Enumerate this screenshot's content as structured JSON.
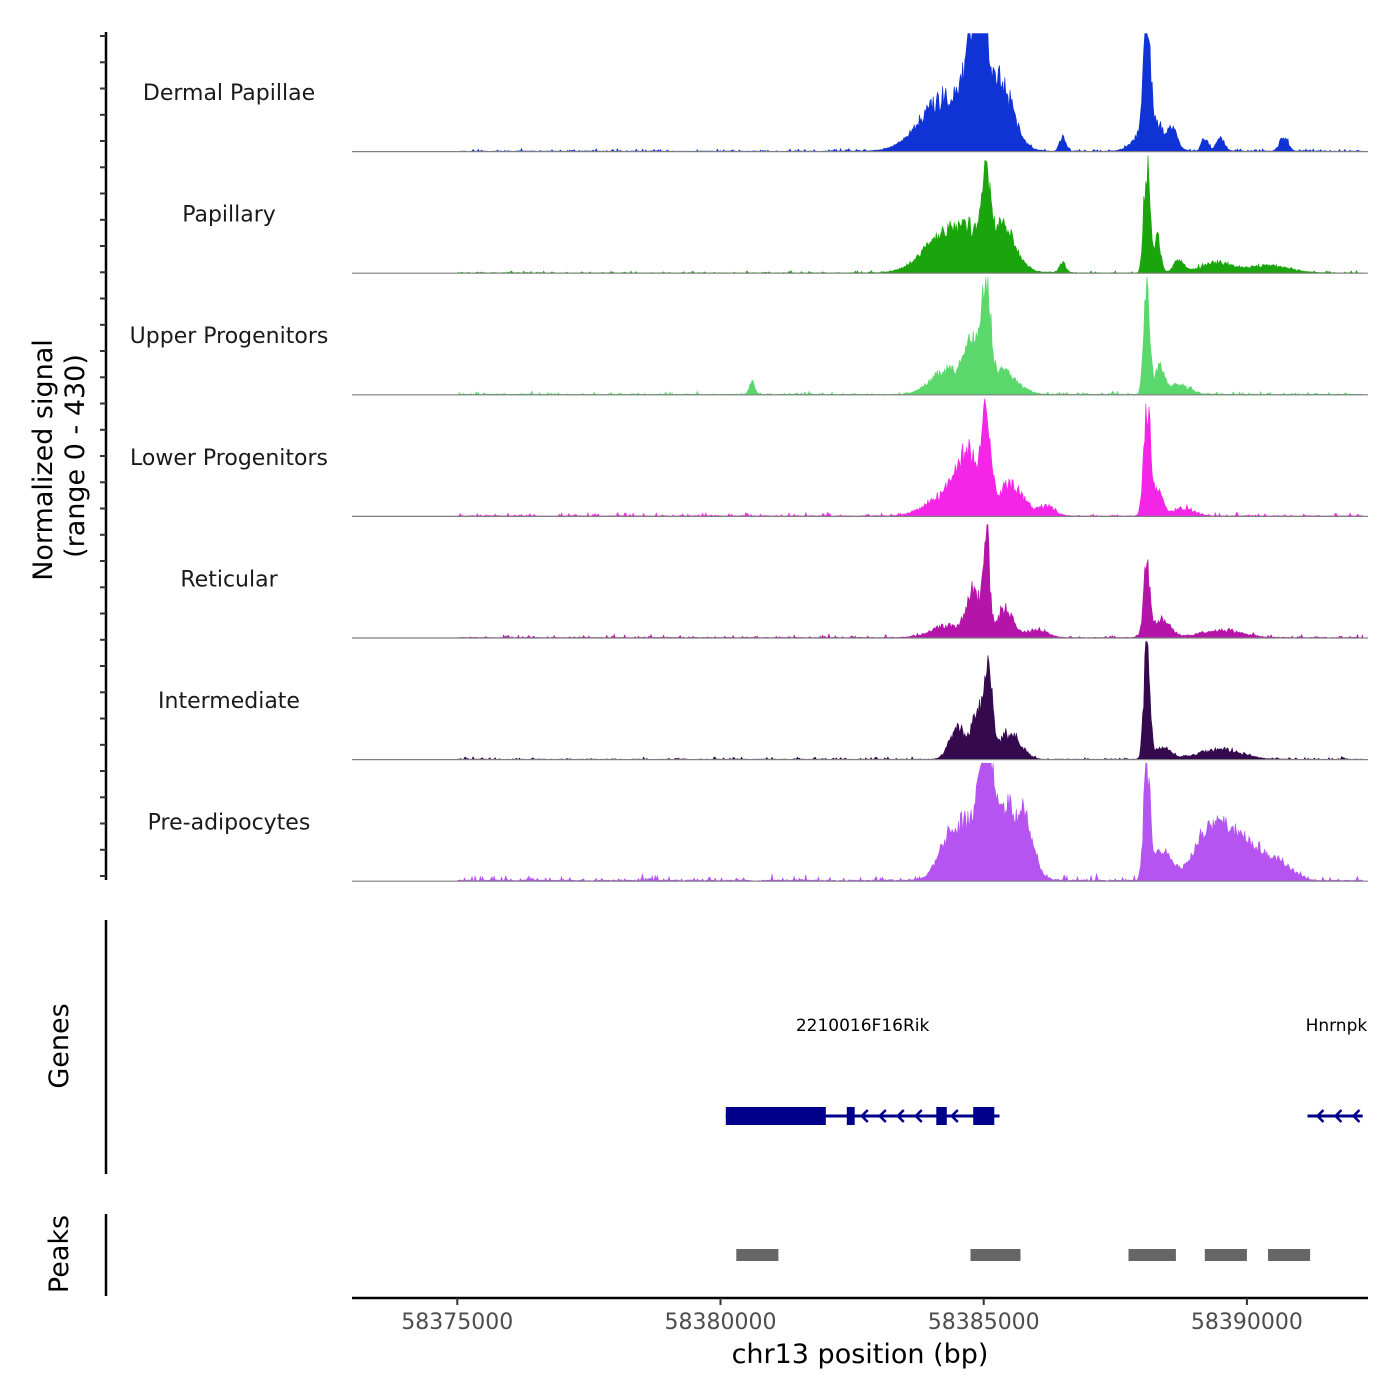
{
  "chart_data": {
    "type": "area",
    "title": "",
    "ylabel_line1": "Normalized signal",
    "ylabel_line2": "(range 0 - 430)",
    "signal_range": [
      0,
      430
    ],
    "xlabel": "chr13 position (bp)",
    "xlim": [
      58373000,
      58392300
    ],
    "x_ticks": [
      58375000,
      58380000,
      58385000,
      58390000
    ],
    "x_tick_labels": [
      "58375000",
      "58380000",
      "58385000",
      "58390000"
    ],
    "region_start": 58375000,
    "region_end": 58392200,
    "tracks": [
      {
        "name": "Dermal Papillae",
        "color": "#1033d6",
        "noise": 0.03,
        "peaks": [
          [
            58384000,
            12,
            400
          ],
          [
            58384500,
            40,
            500
          ],
          [
            58385000,
            120,
            60
          ],
          [
            58384800,
            70,
            120
          ],
          [
            58385300,
            50,
            250
          ],
          [
            58386500,
            12,
            60
          ],
          [
            58388100,
            95,
            60
          ],
          [
            58388200,
            25,
            250
          ],
          [
            58388600,
            12,
            80
          ],
          [
            58389200,
            12,
            60
          ],
          [
            58389500,
            10,
            80
          ],
          [
            58390700,
            12,
            80
          ]
        ]
      },
      {
        "name": "Papillary",
        "color": "#1aa50c",
        "noise": 0.025,
        "peaks": [
          [
            58384200,
            20,
            400
          ],
          [
            58384800,
            30,
            500
          ],
          [
            58385050,
            55,
            70
          ],
          [
            58385400,
            25,
            200
          ],
          [
            58386500,
            8,
            60
          ],
          [
            58388100,
            95,
            55
          ],
          [
            58388300,
            30,
            60
          ],
          [
            58388700,
            10,
            100
          ],
          [
            58389400,
            8,
            300
          ],
          [
            58390400,
            6,
            400
          ]
        ]
      },
      {
        "name": "Upper Progenitors",
        "color": "#5ad86c",
        "noise": 0.03,
        "peaks": [
          [
            58380600,
            12,
            50
          ],
          [
            58384300,
            20,
            300
          ],
          [
            58384800,
            40,
            150
          ],
          [
            58385050,
            80,
            70
          ],
          [
            58385300,
            20,
            300
          ],
          [
            58388100,
            100,
            55
          ],
          [
            58388350,
            25,
            80
          ],
          [
            58388700,
            8,
            200
          ]
        ]
      },
      {
        "name": "Lower Progenitors",
        "color": "#f525e8",
        "noise": 0.035,
        "peaks": [
          [
            58384400,
            20,
            400
          ],
          [
            58384700,
            40,
            200
          ],
          [
            58385050,
            75,
            80
          ],
          [
            58385500,
            25,
            250
          ],
          [
            58386200,
            8,
            150
          ],
          [
            58388100,
            100,
            60
          ],
          [
            58388300,
            20,
            100
          ],
          [
            58388800,
            6,
            200
          ]
        ]
      },
      {
        "name": "Reticular",
        "color": "#b514a8",
        "noise": 0.03,
        "peaks": [
          [
            58384300,
            10,
            300
          ],
          [
            58384800,
            40,
            120
          ],
          [
            58385050,
            85,
            60
          ],
          [
            58385400,
            25,
            150
          ],
          [
            58386000,
            6,
            200
          ],
          [
            58388100,
            60,
            60
          ],
          [
            58388400,
            15,
            150
          ],
          [
            58389500,
            6,
            400
          ]
        ]
      },
      {
        "name": "Intermediate",
        "color": "#35094e",
        "noise": 0.025,
        "peaks": [
          [
            58384500,
            25,
            150
          ],
          [
            58384950,
            45,
            150
          ],
          [
            58385100,
            55,
            60
          ],
          [
            58385500,
            22,
            200
          ],
          [
            58388100,
            100,
            55
          ],
          [
            58388400,
            10,
            150
          ],
          [
            58389500,
            8,
            400
          ]
        ]
      },
      {
        "name": "Pre-adipocytes",
        "color": "#b554f0",
        "noise": 0.06,
        "peaks": [
          [
            58384300,
            25,
            200
          ],
          [
            58384800,
            50,
            300
          ],
          [
            58385050,
            95,
            80
          ],
          [
            58385400,
            55,
            300
          ],
          [
            58385800,
            30,
            150
          ],
          [
            58388100,
            100,
            60
          ],
          [
            58388400,
            25,
            150
          ],
          [
            58389200,
            25,
            300
          ],
          [
            58389600,
            35,
            300
          ],
          [
            58390100,
            20,
            250
          ],
          [
            58390600,
            15,
            250
          ]
        ]
      }
    ],
    "genes_panel_label": "Genes",
    "genes": [
      {
        "name": "2210016F16Rik",
        "label_x": 58382700,
        "start": 58380100,
        "end": 58385300,
        "strand": "-",
        "color": "#00008b",
        "exons": [
          [
            58380100,
            58382000
          ],
          [
            58382400,
            58382550
          ],
          [
            58384100,
            58384300
          ],
          [
            58384800,
            58385200
          ]
        ]
      },
      {
        "name": "Hnrnpk",
        "label_x": 58391700,
        "start": 58391150,
        "end": 58392200,
        "strand": "-",
        "color": "#00008b",
        "exons": []
      }
    ],
    "peaks_panel_label": "Peaks",
    "peak_color": "#666666",
    "peaks": [
      [
        58380300,
        58381100
      ],
      [
        58384750,
        58385700
      ],
      [
        58387750,
        58388650
      ],
      [
        58389200,
        58390000
      ],
      [
        58390400,
        58391200
      ]
    ]
  }
}
